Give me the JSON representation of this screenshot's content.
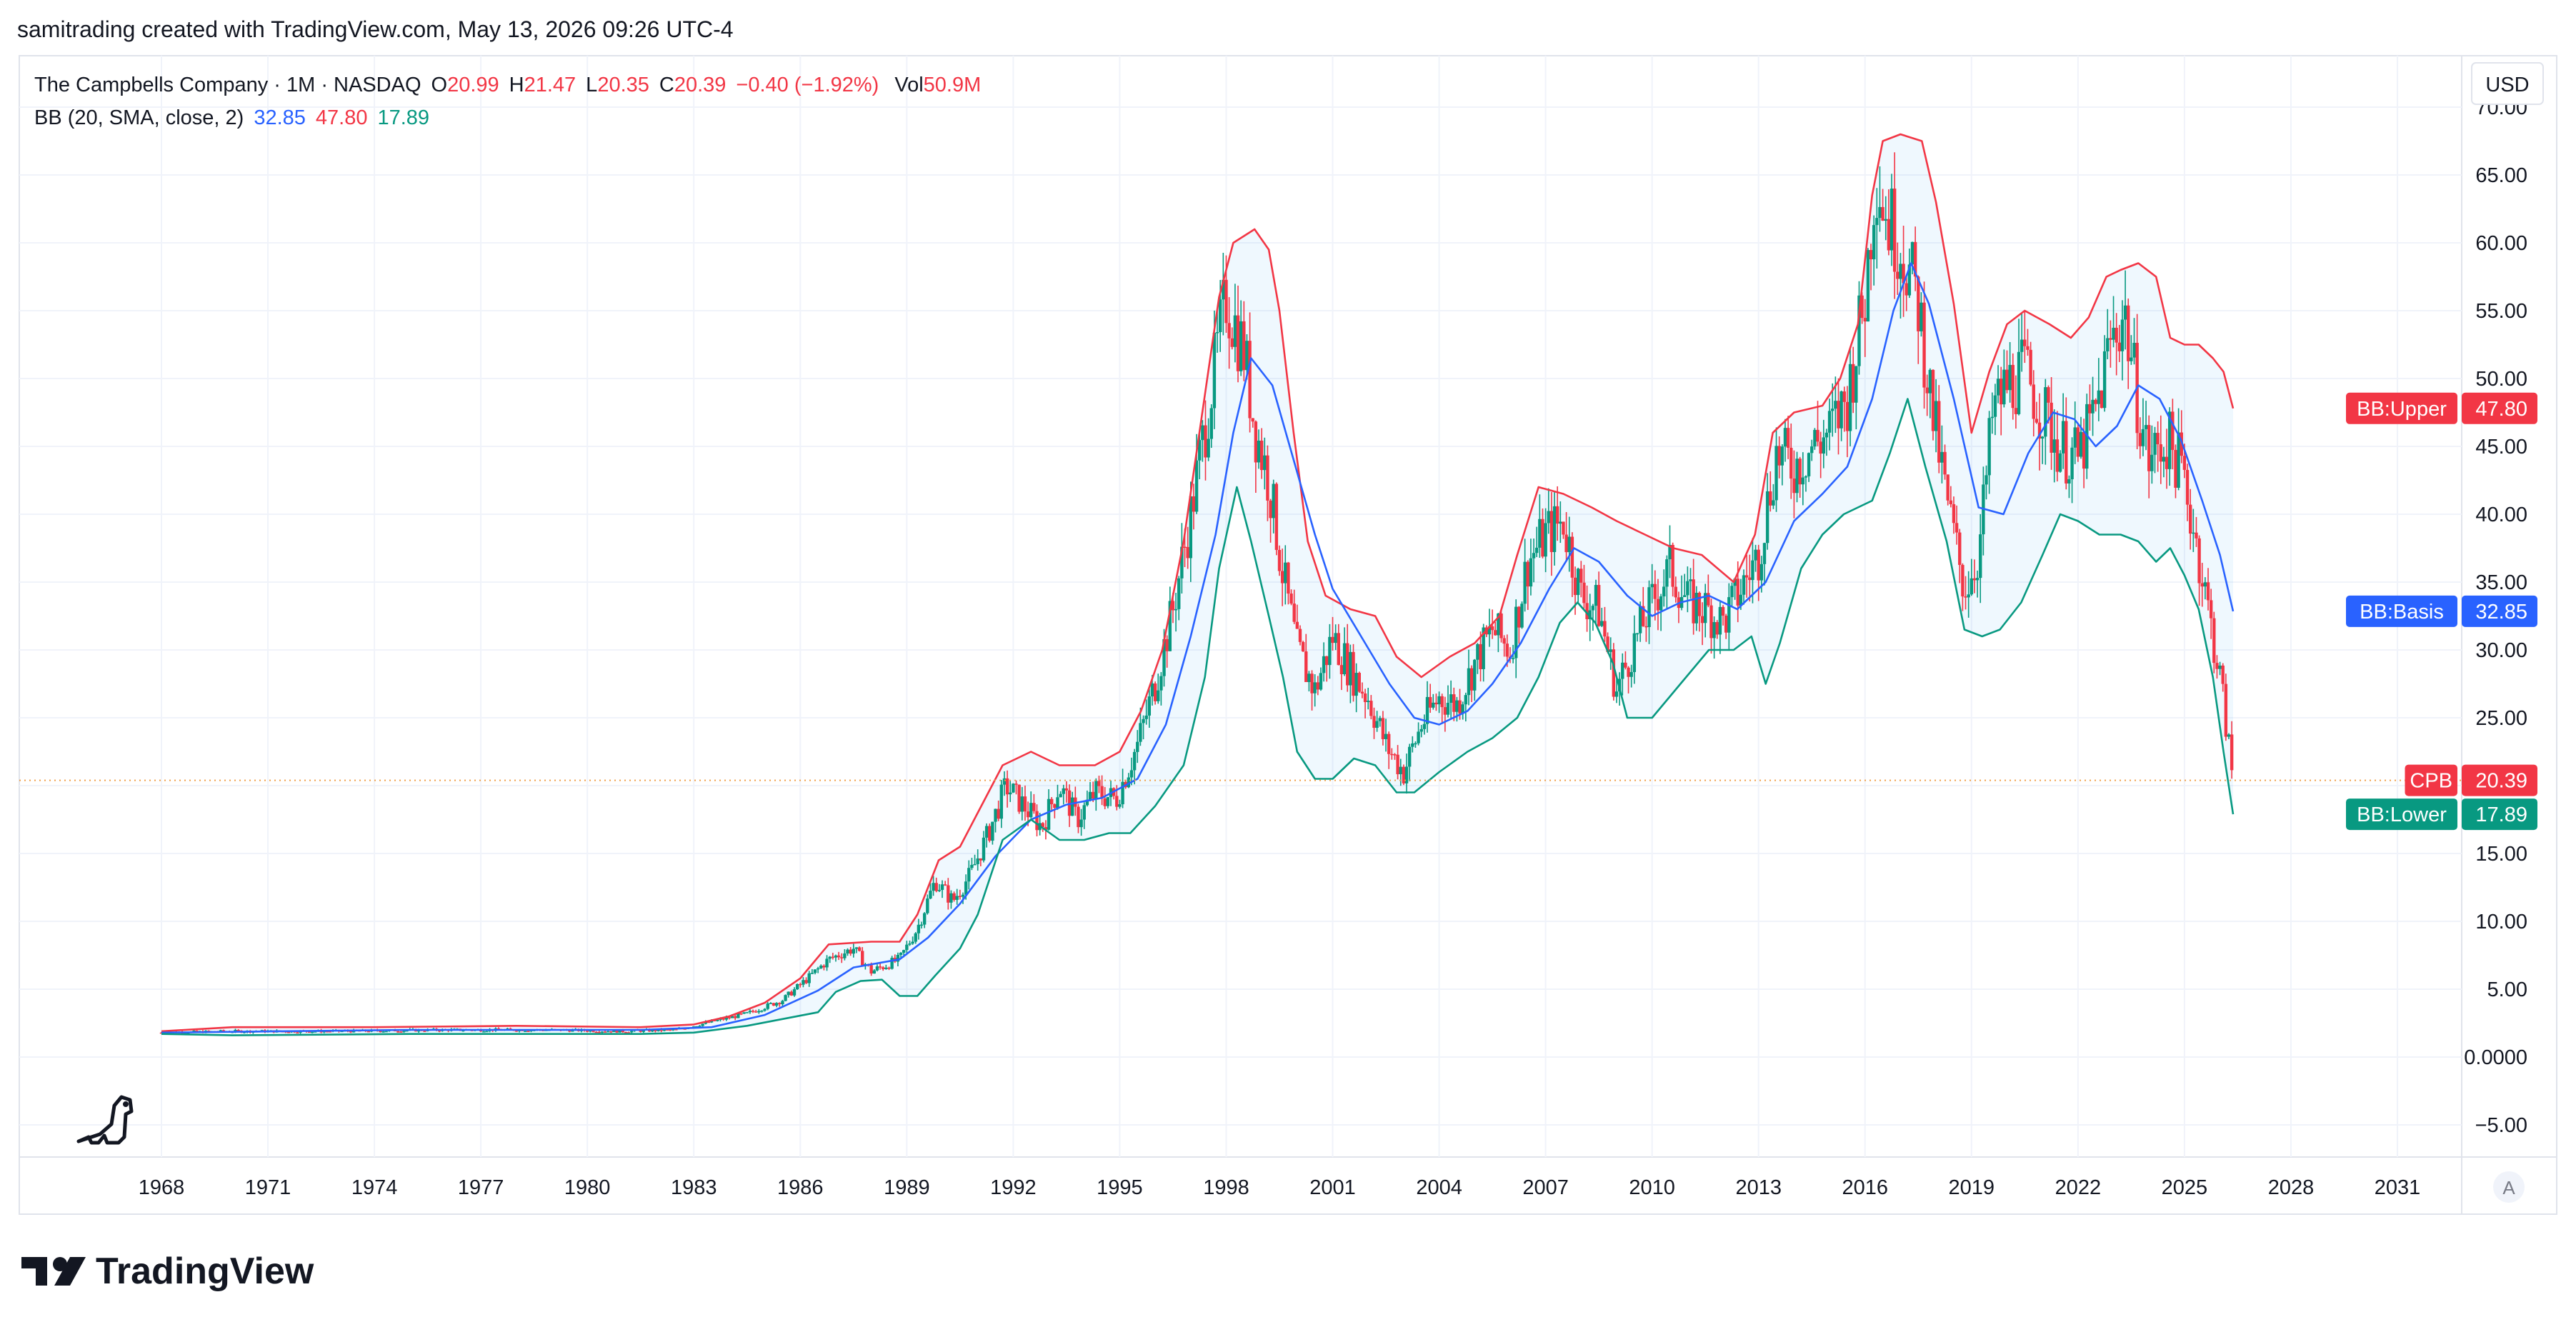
{
  "header": {
    "created_by": "samitrading created with TradingView.com, May 13, 2026 09:26 UTC-4"
  },
  "legend": {
    "symbol_line": "The Campbells Company · 1M · NASDAQ",
    "open_label": "O",
    "open_value": "20.99",
    "high_label": "H",
    "high_value": "21.47",
    "low_label": "L",
    "low_value": "20.35",
    "close_label": "C",
    "close_value": "20.39",
    "change": "−0.40 (−1.92%)",
    "vol_label": "Vol",
    "vol_value": "50.9M",
    "bb_label": "BB (20, SMA, close, 2)",
    "bb_basis": "32.85",
    "bb_upper": "47.80",
    "bb_lower": "17.89"
  },
  "currency_button": {
    "label": "USD"
  },
  "price_tags": [
    {
      "name": "BB:Upper",
      "value": "47.80",
      "price": 47.8,
      "color": "#f23645"
    },
    {
      "name": "BB:Basis",
      "value": "32.85",
      "price": 32.85,
      "color": "#2962ff"
    },
    {
      "name": "CPB",
      "value": "20.39",
      "price": 20.39,
      "color": "#f23645"
    },
    {
      "name": "BB:Lower",
      "value": "17.89",
      "price": 17.89,
      "color": "#089981"
    }
  ],
  "auto_scale_button": {
    "label": "A"
  },
  "branding": {
    "wordmark": "TradingView",
    "logo_icon": "tradingview-logo-icon"
  },
  "colors": {
    "up": "#089981",
    "down": "#f23645",
    "bb_upper": "#f23645",
    "bb_basis": "#2962ff",
    "bb_lower": "#089981",
    "bb_fill": "#2196f3",
    "last_price_line": "#f0a049"
  },
  "chart_data": {
    "type": "candlestick",
    "interval": "1M",
    "y_axis": {
      "ticks": [
        "70.00",
        "65.00",
        "60.00",
        "55.00",
        "50.00",
        "45.00",
        "40.00",
        "35.00",
        "30.00",
        "25.00",
        "20.00",
        "15.00",
        "10.00",
        "5.00",
        "0.0000",
        "−5.00"
      ],
      "range": [
        -5,
        72.5
      ],
      "position": "right"
    },
    "x_axis": {
      "ticks": [
        "1968",
        "1971",
        "1974",
        "1977",
        "1980",
        "1983",
        "1986",
        "1989",
        "1992",
        "1995",
        "1998",
        "2001",
        "2004",
        "2007",
        "2010",
        "2013",
        "2016",
        "2019",
        "2022",
        "2025",
        "2028",
        "2031"
      ],
      "range": [
        1967.7,
        2032.4
      ]
    },
    "last_price": 20.39,
    "grid": true,
    "price_path": [
      [
        1968.0,
        1.8
      ],
      [
        1970.0,
        1.9
      ],
      [
        1973.0,
        1.9
      ],
      [
        1976.0,
        2.0
      ],
      [
        1979.0,
        2.0
      ],
      [
        1981.0,
        1.9
      ],
      [
        1982.5,
        2.0
      ],
      [
        1983.5,
        2.6
      ],
      [
        1984.5,
        3.2
      ],
      [
        1985.5,
        4.2
      ],
      [
        1986.3,
        6.0
      ],
      [
        1986.8,
        7.2
      ],
      [
        1987.5,
        8.0
      ],
      [
        1988.0,
        6.3
      ],
      [
        1988.8,
        7.2
      ],
      [
        1989.3,
        9.5
      ],
      [
        1989.8,
        13.0
      ],
      [
        1990.3,
        11.5
      ],
      [
        1990.8,
        13.5
      ],
      [
        1991.3,
        16.5
      ],
      [
        1991.8,
        20.0
      ],
      [
        1992.3,
        18.5
      ],
      [
        1992.8,
        17.0
      ],
      [
        1993.3,
        20.0
      ],
      [
        1993.8,
        17.5
      ],
      [
        1994.3,
        19.5
      ],
      [
        1994.9,
        19.0
      ],
      [
        1995.5,
        23.0
      ],
      [
        1996.0,
        27.5
      ],
      [
        1996.5,
        33.0
      ],
      [
        1997.0,
        40.0
      ],
      [
        1997.5,
        48.0
      ],
      [
        1998.0,
        56.0
      ],
      [
        1998.5,
        52.0
      ],
      [
        1998.8,
        46.5
      ],
      [
        1999.2,
        42.5
      ],
      [
        1999.6,
        35.5
      ],
      [
        2000.0,
        30.0
      ],
      [
        2000.5,
        27.0
      ],
      [
        2001.0,
        31.0
      ],
      [
        2001.5,
        28.5
      ],
      [
        2002.0,
        26.5
      ],
      [
        2002.5,
        23.0
      ],
      [
        2003.0,
        21.0
      ],
      [
        2003.5,
        24.5
      ],
      [
        2004.0,
        26.5
      ],
      [
        2004.5,
        26.0
      ],
      [
        2005.0,
        29.0
      ],
      [
        2005.5,
        31.5
      ],
      [
        2006.0,
        30.0
      ],
      [
        2006.5,
        36.5
      ],
      [
        2007.0,
        38.5
      ],
      [
        2007.5,
        39.5
      ],
      [
        2008.0,
        34.0
      ],
      [
        2008.5,
        33.0
      ],
      [
        2009.0,
        27.0
      ],
      [
        2009.5,
        30.5
      ],
      [
        2010.0,
        33.5
      ],
      [
        2010.5,
        36.0
      ],
      [
        2011.0,
        33.5
      ],
      [
        2011.5,
        33.0
      ],
      [
        2012.0,
        32.0
      ],
      [
        2012.5,
        34.5
      ],
      [
        2013.0,
        37.0
      ],
      [
        2013.5,
        44.5
      ],
      [
        2014.0,
        43.5
      ],
      [
        2014.5,
        45.0
      ],
      [
        2015.0,
        46.0
      ],
      [
        2015.5,
        48.5
      ],
      [
        2016.0,
        56.0
      ],
      [
        2016.3,
        65.5
      ],
      [
        2016.6,
        62.0
      ],
      [
        2017.0,
        60.0
      ],
      [
        2017.5,
        55.5
      ],
      [
        2017.9,
        47.5
      ],
      [
        2018.3,
        41.0
      ],
      [
        2018.8,
        34.5
      ],
      [
        2019.2,
        37.0
      ],
      [
        2019.6,
        47.5
      ],
      [
        2020.0,
        49.5
      ],
      [
        2020.5,
        50.5
      ],
      [
        2021.0,
        47.5
      ],
      [
        2021.5,
        45.0
      ],
      [
        2022.0,
        44.0
      ],
      [
        2022.5,
        47.5
      ],
      [
        2022.9,
        52.5
      ],
      [
        2023.3,
        55.0
      ],
      [
        2023.7,
        48.0
      ],
      [
        2024.0,
        44.0
      ],
      [
        2024.5,
        45.5
      ],
      [
        2024.9,
        43.5
      ],
      [
        2025.3,
        38.5
      ],
      [
        2025.7,
        32.5
      ],
      [
        2026.0,
        28.0
      ],
      [
        2026.37,
        20.39
      ]
    ],
    "bb_upper": [
      [
        1968.0,
        1.9
      ],
      [
        1970.0,
        2.2
      ],
      [
        1974.0,
        2.2
      ],
      [
        1978.0,
        2.3
      ],
      [
        1981.5,
        2.2
      ],
      [
        1983.0,
        2.4
      ],
      [
        1984.0,
        3.0
      ],
      [
        1985.0,
        4.0
      ],
      [
        1986.0,
        5.8
      ],
      [
        1986.8,
        8.3
      ],
      [
        1988.0,
        8.5
      ],
      [
        1988.8,
        8.5
      ],
      [
        1989.3,
        10.5
      ],
      [
        1989.9,
        14.5
      ],
      [
        1990.5,
        15.5
      ],
      [
        1991.0,
        18.0
      ],
      [
        1991.7,
        21.5
      ],
      [
        1992.5,
        22.5
      ],
      [
        1993.3,
        21.5
      ],
      [
        1994.3,
        21.5
      ],
      [
        1995.0,
        22.5
      ],
      [
        1995.6,
        25.5
      ],
      [
        1996.2,
        30.0
      ],
      [
        1996.8,
        38.0
      ],
      [
        1997.3,
        47.0
      ],
      [
        1997.8,
        56.0
      ],
      [
        1998.2,
        60.0
      ],
      [
        1998.8,
        61.0
      ],
      [
        1999.2,
        59.5
      ],
      [
        1999.5,
        55.0
      ],
      [
        1999.9,
        46.0
      ],
      [
        2000.3,
        38.0
      ],
      [
        2000.8,
        34.0
      ],
      [
        2001.5,
        33.0
      ],
      [
        2002.2,
        32.5
      ],
      [
        2002.8,
        29.5
      ],
      [
        2003.5,
        28.0
      ],
      [
        2004.3,
        29.5
      ],
      [
        2005.0,
        30.5
      ],
      [
        2005.7,
        32.5
      ],
      [
        2006.2,
        37.0
      ],
      [
        2006.8,
        42.0
      ],
      [
        2007.5,
        41.5
      ],
      [
        2008.3,
        40.5
      ],
      [
        2009.0,
        39.5
      ],
      [
        2009.8,
        38.5
      ],
      [
        2010.6,
        37.5
      ],
      [
        2011.4,
        37.0
      ],
      [
        2012.3,
        35.0
      ],
      [
        2012.9,
        38.5
      ],
      [
        2013.4,
        46.0
      ],
      [
        2014.0,
        47.5
      ],
      [
        2014.8,
        48.0
      ],
      [
        2015.3,
        50.0
      ],
      [
        2015.8,
        54.0
      ],
      [
        2016.2,
        63.5
      ],
      [
        2016.5,
        67.5
      ],
      [
        2017.0,
        68.0
      ],
      [
        2017.6,
        67.5
      ],
      [
        2018.0,
        63.0
      ],
      [
        2018.5,
        55.5
      ],
      [
        2019.0,
        46.0
      ],
      [
        2019.5,
        50.5
      ],
      [
        2020.0,
        54.0
      ],
      [
        2020.5,
        55.0
      ],
      [
        2021.2,
        54.0
      ],
      [
        2021.8,
        53.0
      ],
      [
        2022.3,
        54.5
      ],
      [
        2022.8,
        57.5
      ],
      [
        2023.2,
        58.0
      ],
      [
        2023.7,
        58.5
      ],
      [
        2024.2,
        57.5
      ],
      [
        2024.6,
        53.0
      ],
      [
        2025.0,
        52.5
      ],
      [
        2025.4,
        52.5
      ],
      [
        2025.8,
        51.5
      ],
      [
        2026.1,
        50.5
      ],
      [
        2026.37,
        47.8
      ]
    ],
    "bb_basis": [
      [
        1968.0,
        1.8
      ],
      [
        1975.0,
        2.0
      ],
      [
        1981.5,
        2.0
      ],
      [
        1983.5,
        2.2
      ],
      [
        1985.0,
        3.1
      ],
      [
        1986.5,
        4.9
      ],
      [
        1987.5,
        6.6
      ],
      [
        1988.8,
        7.2
      ],
      [
        1989.6,
        8.8
      ],
      [
        1990.5,
        11.3
      ],
      [
        1991.5,
        14.8
      ],
      [
        1992.5,
        17.5
      ],
      [
        1993.5,
        18.6
      ],
      [
        1994.5,
        19.1
      ],
      [
        1995.5,
        20.5
      ],
      [
        1996.3,
        24.5
      ],
      [
        1997.0,
        31.0
      ],
      [
        1997.7,
        38.5
      ],
      [
        1998.2,
        46.0
      ],
      [
        1998.7,
        51.5
      ],
      [
        1999.3,
        49.5
      ],
      [
        1999.9,
        44.0
      ],
      [
        2000.5,
        38.5
      ],
      [
        2001.0,
        34.5
      ],
      [
        2001.8,
        31.0
      ],
      [
        2002.6,
        27.5
      ],
      [
        2003.3,
        25.0
      ],
      [
        2004.0,
        24.5
      ],
      [
        2004.8,
        25.5
      ],
      [
        2005.5,
        27.5
      ],
      [
        2006.3,
        30.5
      ],
      [
        2007.1,
        34.5
      ],
      [
        2007.8,
        37.5
      ],
      [
        2008.5,
        36.5
      ],
      [
        2009.3,
        34.0
      ],
      [
        2010.0,
        32.5
      ],
      [
        2010.8,
        33.5
      ],
      [
        2011.6,
        34.0
      ],
      [
        2012.4,
        33.0
      ],
      [
        2013.2,
        35.0
      ],
      [
        2014.0,
        39.5
      ],
      [
        2014.8,
        41.5
      ],
      [
        2015.5,
        43.5
      ],
      [
        2016.2,
        48.5
      ],
      [
        2016.8,
        55.0
      ],
      [
        2017.3,
        58.5
      ],
      [
        2017.8,
        55.5
      ],
      [
        2018.5,
        48.5
      ],
      [
        2019.2,
        40.5
      ],
      [
        2019.9,
        40.0
      ],
      [
        2020.6,
        44.5
      ],
      [
        2021.3,
        47.5
      ],
      [
        2021.9,
        47.0
      ],
      [
        2022.5,
        45.0
      ],
      [
        2023.1,
        46.5
      ],
      [
        2023.7,
        49.5
      ],
      [
        2024.3,
        48.5
      ],
      [
        2024.9,
        45.5
      ],
      [
        2025.5,
        41.0
      ],
      [
        2026.0,
        37.0
      ],
      [
        2026.37,
        32.85
      ]
    ],
    "bb_lower": [
      [
        1968.0,
        1.7
      ],
      [
        1970.0,
        1.6
      ],
      [
        1975.0,
        1.7
      ],
      [
        1981.5,
        1.7
      ],
      [
        1983.0,
        1.8
      ],
      [
        1984.5,
        2.3
      ],
      [
        1985.5,
        2.8
      ],
      [
        1986.5,
        3.3
      ],
      [
        1987.0,
        4.8
      ],
      [
        1987.7,
        5.6
      ],
      [
        1988.3,
        5.7
      ],
      [
        1988.8,
        4.5
      ],
      [
        1989.3,
        4.5
      ],
      [
        1989.8,
        6.0
      ],
      [
        1990.5,
        8.0
      ],
      [
        1991.0,
        10.5
      ],
      [
        1991.7,
        16.0
      ],
      [
        1992.5,
        17.5
      ],
      [
        1993.3,
        16.0
      ],
      [
        1994.0,
        16.0
      ],
      [
        1994.7,
        16.5
      ],
      [
        1995.3,
        16.5
      ],
      [
        1996.0,
        18.5
      ],
      [
        1996.8,
        21.5
      ],
      [
        1997.4,
        28.0
      ],
      [
        1997.8,
        36.0
      ],
      [
        1998.3,
        42.0
      ],
      [
        1998.7,
        38.0
      ],
      [
        1999.2,
        32.5
      ],
      [
        1999.6,
        28.0
      ],
      [
        2000.0,
        22.5
      ],
      [
        2000.5,
        20.5
      ],
      [
        2001.0,
        20.5
      ],
      [
        2001.6,
        22.0
      ],
      [
        2002.2,
        21.5
      ],
      [
        2002.8,
        19.5
      ],
      [
        2003.3,
        19.5
      ],
      [
        2004.0,
        21.0
      ],
      [
        2004.8,
        22.5
      ],
      [
        2005.5,
        23.5
      ],
      [
        2006.2,
        25.0
      ],
      [
        2006.8,
        28.0
      ],
      [
        2007.4,
        32.0
      ],
      [
        2007.9,
        33.5
      ],
      [
        2008.4,
        32.0
      ],
      [
        2008.9,
        29.0
      ],
      [
        2009.3,
        25.0
      ],
      [
        2010.0,
        25.0
      ],
      [
        2010.8,
        27.5
      ],
      [
        2011.6,
        30.0
      ],
      [
        2012.3,
        30.0
      ],
      [
        2012.8,
        31.0
      ],
      [
        2013.2,
        27.5
      ],
      [
        2013.6,
        30.5
      ],
      [
        2014.2,
        36.0
      ],
      [
        2014.8,
        38.5
      ],
      [
        2015.4,
        40.0
      ],
      [
        2015.8,
        40.5
      ],
      [
        2016.2,
        41.0
      ],
      [
        2016.7,
        44.5
      ],
      [
        2017.2,
        48.5
      ],
      [
        2017.7,
        43.5
      ],
      [
        2018.3,
        38.0
      ],
      [
        2018.8,
        31.5
      ],
      [
        2019.3,
        31.0
      ],
      [
        2019.8,
        31.5
      ],
      [
        2020.4,
        33.5
      ],
      [
        2021.0,
        37.0
      ],
      [
        2021.5,
        40.0
      ],
      [
        2022.0,
        39.5
      ],
      [
        2022.6,
        38.5
      ],
      [
        2023.2,
        38.5
      ],
      [
        2023.7,
        38.0
      ],
      [
        2024.2,
        36.5
      ],
      [
        2024.6,
        37.5
      ],
      [
        2025.0,
        35.5
      ],
      [
        2025.4,
        33.0
      ],
      [
        2025.8,
        28.0
      ],
      [
        2026.1,
        22.5
      ],
      [
        2026.37,
        17.89
      ]
    ]
  }
}
